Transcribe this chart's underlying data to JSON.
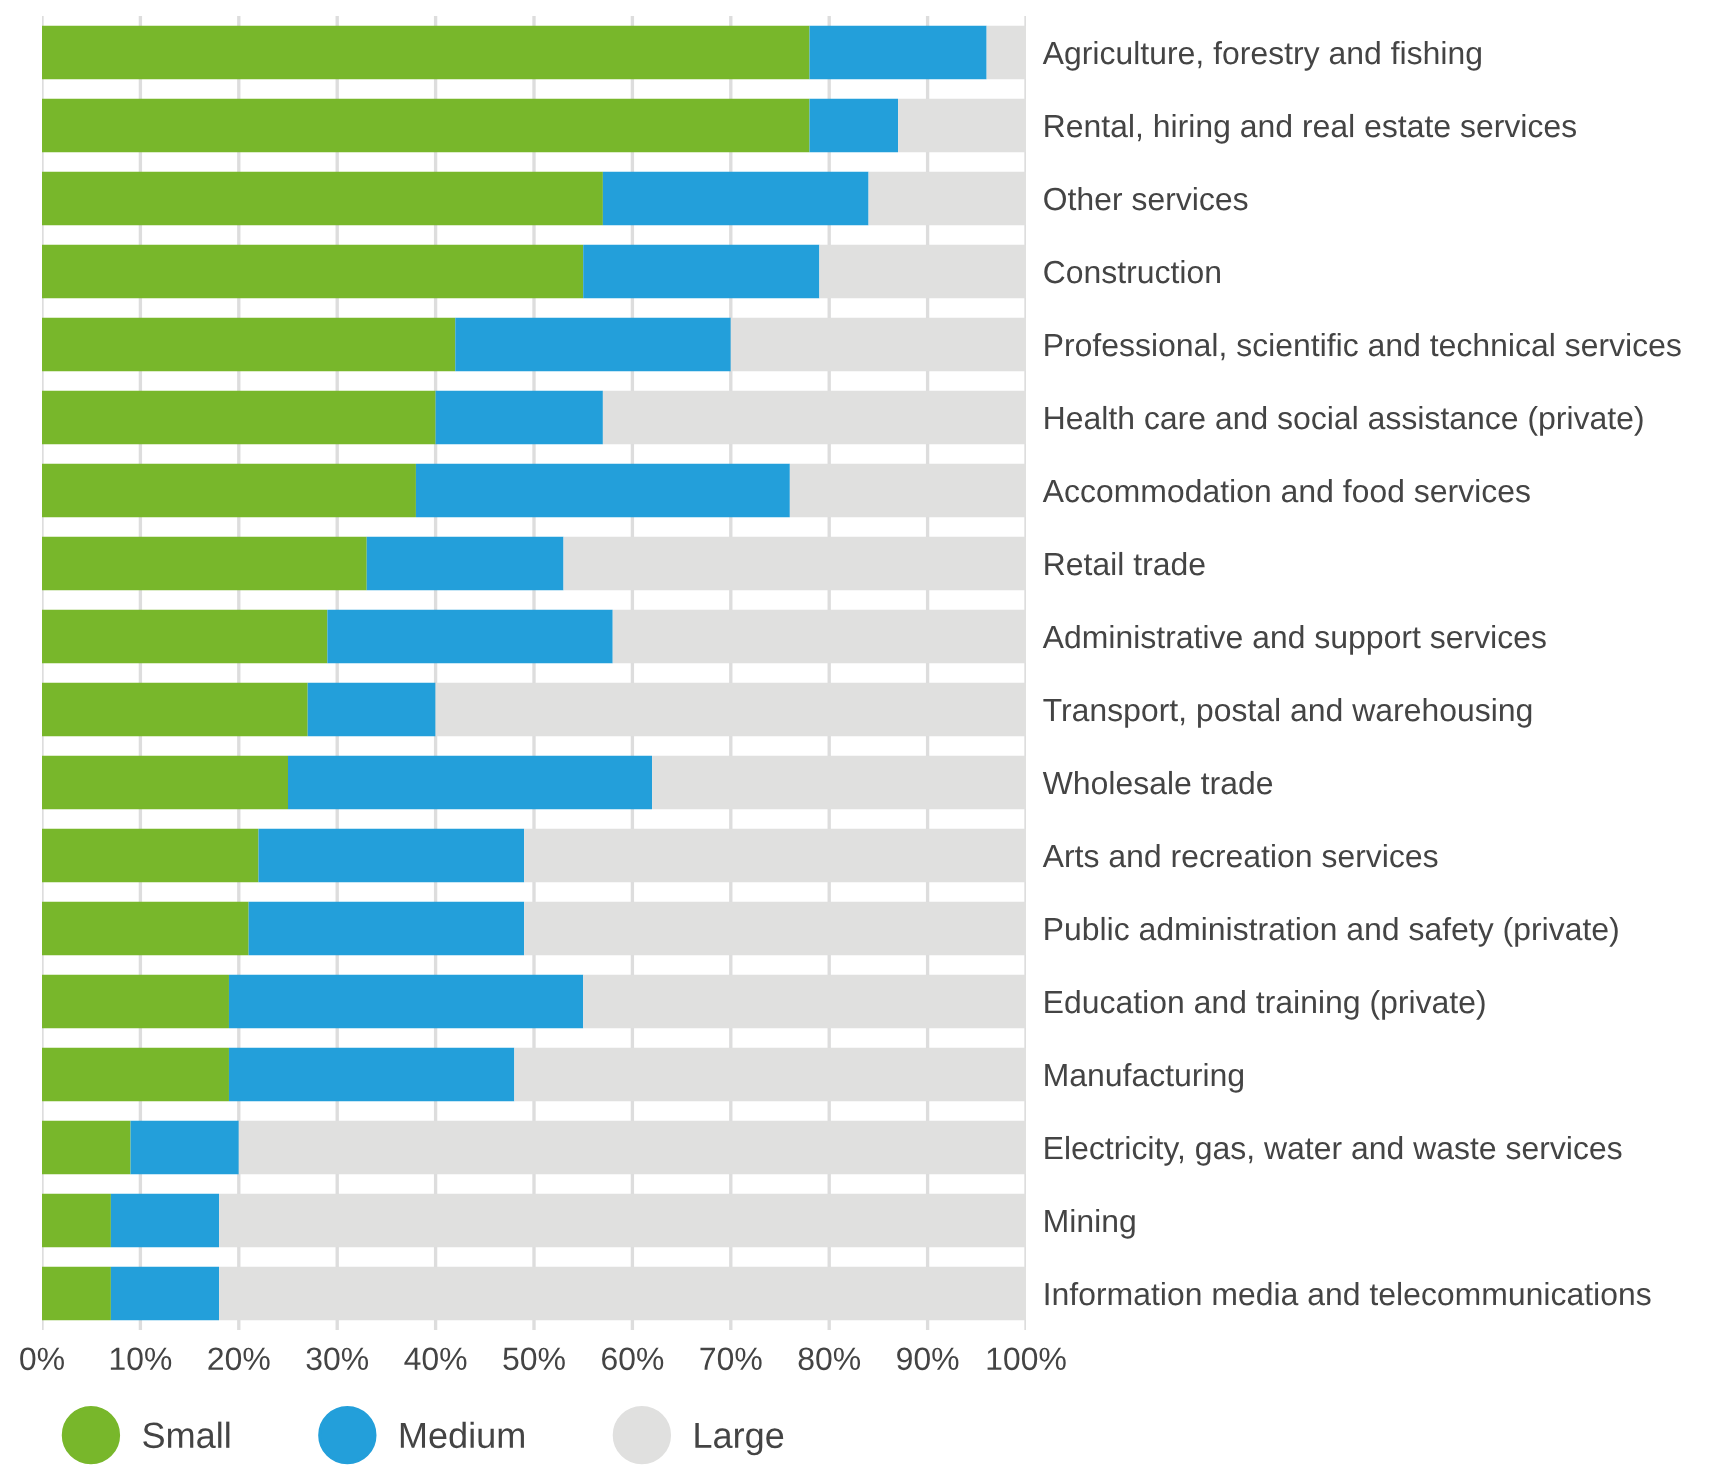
{
  "chart_data": {
    "type": "bar",
    "orientation": "horizontal",
    "stacked": true,
    "grid": "x",
    "legend": "bottom",
    "categories": [
      "Agriculture, forestry and fishing",
      "Rental, hiring and real estate services",
      "Other services",
      "Construction",
      "Professional, scientific and technical services",
      "Health care and social assistance (private)",
      "Accommodation and food services",
      "Retail trade",
      "Administrative and support services",
      "Transport, postal and warehousing",
      "Wholesale trade",
      "Arts and recreation services",
      "Public administration and safety (private)",
      "Education and training (private)",
      "Manufacturing",
      "Electricity, gas, water and waste services",
      "Mining",
      "Information media and telecommunications"
    ],
    "series": [
      {
        "name": "Small",
        "color": "#78b72b",
        "values": [
          78,
          78,
          57,
          55,
          42,
          40,
          38,
          33,
          29,
          27,
          25,
          22,
          21,
          19,
          19,
          9,
          7,
          7
        ]
      },
      {
        "name": "Medium",
        "color": "#239fda",
        "values": [
          18,
          9,
          27,
          24,
          28,
          17,
          38,
          20,
          29,
          13,
          37,
          27,
          28,
          36,
          29,
          11,
          11,
          11
        ]
      },
      {
        "name": "Large",
        "color": "#e0e0df",
        "values": [
          4,
          13,
          16,
          21,
          30,
          43,
          24,
          47,
          42,
          60,
          38,
          51,
          51,
          45,
          52,
          80,
          82,
          82
        ]
      }
    ],
    "xlim": [
      0,
      100
    ],
    "xticks": [
      {
        "value": 0,
        "label": "0%"
      },
      {
        "value": 10,
        "label": "10%"
      },
      {
        "value": 20,
        "label": "20%"
      },
      {
        "value": 30,
        "label": "30%"
      },
      {
        "value": 40,
        "label": "40%"
      },
      {
        "value": 50,
        "label": "50%"
      },
      {
        "value": 60,
        "label": "60%"
      },
      {
        "value": 70,
        "label": "70%"
      },
      {
        "value": 80,
        "label": "80%"
      },
      {
        "value": 90,
        "label": "90%"
      },
      {
        "value": 100,
        "label": "100%"
      }
    ]
  }
}
